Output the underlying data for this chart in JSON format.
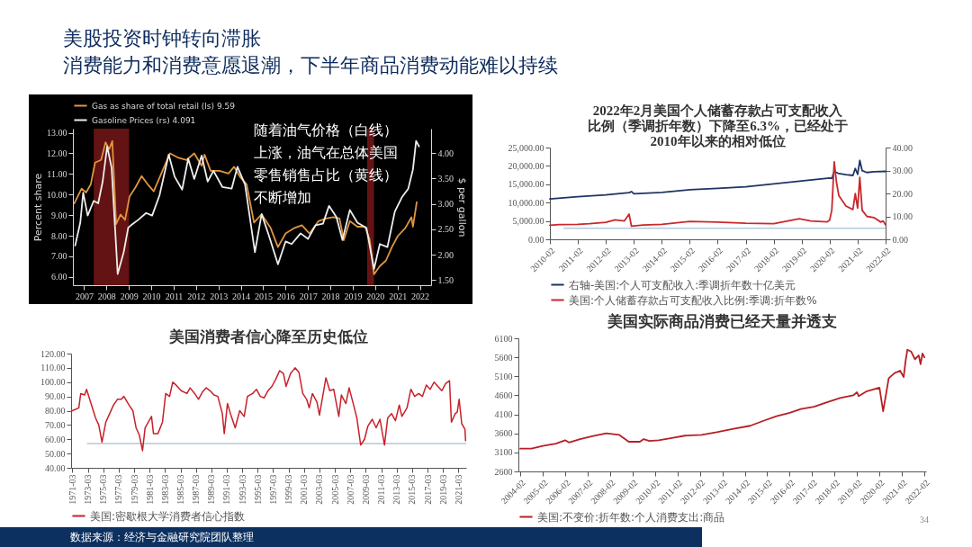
{
  "chart_data": [
    {
      "type": "line",
      "title": "美股投资时钟转向滞胀",
      "subtitle": "消费能力和消费意愿退潮，下半年商品消费动能难以持续",
      "ylabel": "Percent share",
      "y2label": "$ per gallon",
      "annotations": [
        "随着油气价格（白线）上涨，油气在总体美国零售销售占比（黄线）不断增加"
      ],
      "legend": "top",
      "xlim": [
        2007,
        2023
      ],
      "xticks": [
        {
          "value": 2007.5,
          "label": "2007"
        },
        {
          "value": 2008.5,
          "label": "2008"
        },
        {
          "value": 2009.5,
          "label": "2009"
        },
        {
          "value": 2010.5,
          "label": "2010"
        },
        {
          "value": 2011.5,
          "label": "2011"
        },
        {
          "value": 2012.5,
          "label": "2012"
        },
        {
          "value": 2013.5,
          "label": "2013"
        },
        {
          "value": 2014.5,
          "label": "2014"
        },
        {
          "value": 2015.5,
          "label": "2015"
        },
        {
          "value": 2016.5,
          "label": "2016"
        },
        {
          "value": 2017.5,
          "label": "2017"
        },
        {
          "value": 2018.5,
          "label": "2018"
        },
        {
          "value": 2019.5,
          "label": "2019"
        },
        {
          "value": 2020.5,
          "label": "2020"
        },
        {
          "value": 2021.5,
          "label": "2021"
        },
        {
          "value": 2022.5,
          "label": "2022"
        }
      ],
      "ylim": [
        5.6,
        13.2
      ],
      "yticks": [
        {
          "value": 6,
          "label": "6.00"
        },
        {
          "value": 7,
          "label": "7.00"
        },
        {
          "value": 8,
          "label": "8.00"
        },
        {
          "value": 9,
          "label": "9.00"
        },
        {
          "value": 10,
          "label": "10.00"
        },
        {
          "value": 11,
          "label": "11.00"
        },
        {
          "value": 12,
          "label": "12.00"
        },
        {
          "value": 13,
          "label": "13.00"
        }
      ],
      "y2lim": [
        1.4,
        4.48
      ],
      "y2ticks": [
        {
          "value": 1.5,
          "label": "1.50"
        },
        {
          "value": 2,
          "label": "2.00"
        },
        {
          "value": 2.5,
          "label": "2.50"
        },
        {
          "value": 3,
          "label": "3.00"
        },
        {
          "value": 3.5,
          "label": "3.50"
        },
        {
          "value": 4,
          "label": "4.00"
        }
      ],
      "bands": [
        {
          "axis": "x",
          "from": 2007.93,
          "to": 2009.51,
          "color": "#6e1515"
        },
        {
          "axis": "x",
          "from": 2020.14,
          "to": 2020.45,
          "color": "#6e1515"
        }
      ],
      "series": [
        {
          "name": "Gas as share of total retail (ls) 9.59",
          "color": "#e0953f",
          "x": [
            2007.06,
            2007.39,
            2007.59,
            2007.8,
            2007.99,
            2008.26,
            2008.46,
            2008.62,
            2008.76,
            2008.93,
            2009.13,
            2009.33,
            2009.53,
            2009.8,
            2010.07,
            2010.34,
            2010.61,
            2011.0,
            2011.34,
            2011.68,
            2012.08,
            2012.42,
            2012.75,
            2012.88,
            2013.15,
            2013.55,
            2013.95,
            2014.2,
            2014.49,
            2014.76,
            2015.09,
            2015.43,
            2015.83,
            2016.16,
            2016.5,
            2016.9,
            2017.23,
            2017.57,
            2017.97,
            2018.3,
            2018.64,
            2018.91,
            2019.1,
            2019.37,
            2019.71,
            2020.05,
            2020.25,
            2020.45,
            2020.71,
            2020.98,
            2021.25,
            2021.51,
            2021.85,
            2022.12,
            2022.19,
            2022.36
          ],
          "values": [
            9.57,
            10.29,
            10.1,
            10.5,
            11.55,
            11.68,
            12.54,
            12.2,
            12.6,
            8.57,
            9.03,
            8.77,
            9.9,
            10.36,
            10.9,
            10.5,
            10.16,
            11.15,
            12.0,
            11.8,
            11.68,
            12.0,
            11.4,
            11.94,
            11.15,
            11.15,
            11.02,
            11.35,
            10.82,
            10.5,
            8.64,
            9.04,
            8.38,
            7.45,
            8.11,
            8.38,
            8.51,
            8.11,
            8.71,
            8.84,
            8.9,
            8.84,
            7.78,
            8.71,
            8.44,
            8.44,
            7.85,
            6.13,
            6.53,
            6.79,
            7.45,
            7.98,
            8.38,
            8.9,
            8.44,
            9.63
          ]
        },
        {
          "name": "Gasoline Prices (rs) 4.091",
          "color": "#eeeeee",
          "axis": "y2",
          "x": [
            2007.1,
            2007.33,
            2007.46,
            2007.66,
            2007.93,
            2008.13,
            2008.33,
            2008.53,
            2008.73,
            2009.0,
            2009.27,
            2009.47,
            2009.6,
            2009.93,
            2010.27,
            2010.54,
            2010.87,
            2011.28,
            2011.54,
            2011.88,
            2012.15,
            2012.42,
            2012.75,
            2013.02,
            2013.28,
            2013.68,
            2014.09,
            2014.35,
            2014.69,
            2015.13,
            2015.43,
            2015.76,
            2016.16,
            2016.5,
            2016.77,
            2017.17,
            2017.5,
            2017.84,
            2018.17,
            2018.44,
            2018.77,
            2019.04,
            2019.37,
            2019.71,
            2020.11,
            2020.45,
            2020.71,
            2021.05,
            2021.38,
            2021.71,
            2021.98,
            2022.19,
            2022.33,
            2022.46
          ],
          "values": [
            2.18,
            2.63,
            3.22,
            2.77,
            3.06,
            3.01,
            3.44,
            4.13,
            3.71,
            1.62,
            2.05,
            2.53,
            2.58,
            2.69,
            2.82,
            2.77,
            3.17,
            3.97,
            3.54,
            3.28,
            3.89,
            3.49,
            3.95,
            3.44,
            3.65,
            3.33,
            3.3,
            3.73,
            3.38,
            2.05,
            2.8,
            2.37,
            1.81,
            2.26,
            2.21,
            2.42,
            2.31,
            2.58,
            2.61,
            2.96,
            2.74,
            2.29,
            2.88,
            2.63,
            2.53,
            1.72,
            2.21,
            2.15,
            2.85,
            3.14,
            3.3,
            3.68,
            4.24,
            4.13
          ]
        }
      ]
    },
    {
      "type": "line",
      "title": "2022年2月美国个人储蓄存款占可支配收入比例（季调折年数）下降至6.3%，已经处于2010年以来的相对低位",
      "legend": "bottom",
      "xlim": [
        "2010-02",
        "2022-02"
      ],
      "xticks": [
        "2010-02",
        "2011-02",
        "2012-02",
        "2013-02",
        "2014-02",
        "2015-02",
        "2016-02",
        "2017-02",
        "2018-02",
        "2019-02",
        "2020-02",
        "2021-02",
        "2022-02"
      ],
      "ylim": [
        0,
        25000
      ],
      "yticks": [
        {
          "value": 0,
          "label": "0.00"
        },
        {
          "value": 5000,
          "label": "5,000.00"
        },
        {
          "value": 10000,
          "label": "10,000.00"
        },
        {
          "value": 15000,
          "label": "15,000.00"
        },
        {
          "value": 20000,
          "label": "20,000.00"
        },
        {
          "value": 25000,
          "label": "25,000.00"
        }
      ],
      "y2lim": [
        0,
        40
      ],
      "y2ticks": [
        {
          "value": 0,
          "label": "0.00"
        },
        {
          "value": 10,
          "label": "10.00"
        },
        {
          "value": 20,
          "label": "20.00"
        },
        {
          "value": 30,
          "label": "30.00"
        },
        {
          "value": 40,
          "label": "40.00"
        }
      ],
      "ref_lines": [
        {
          "axis": "y",
          "value": 3000,
          "color": "#8fb0c8"
        }
      ],
      "series": [
        {
          "name": "右轴-美国:个人可支配收入:季调折年数十亿美元",
          "color": "#1f3466",
          "x": [
            "2010-02",
            "2011-02",
            "2012-02",
            "2012-12",
            "2013-01",
            "2013-02",
            "2014-02",
            "2015-02",
            "2016-02",
            "2017-02",
            "2018-02",
            "2019-02",
            "2020-02",
            "2020-03",
            "2020-04",
            "2020-06",
            "2020-09",
            "2020-12",
            "2021-01",
            "2021-02",
            "2021-03",
            "2021-04",
            "2021-06",
            "2021-09",
            "2022-02"
          ],
          "values": [
            11000,
            11600,
            12100,
            12700,
            13000,
            12400,
            12800,
            13500,
            13900,
            14300,
            15100,
            15900,
            16700,
            16600,
            18500,
            17900,
            17600,
            17400,
            19300,
            17700,
            21500,
            18700,
            18200,
            18400,
            18500
          ]
        },
        {
          "name": "美国:个人储蓄存款占可支配收入比例:季调:折年数%",
          "color": "#c8282d",
          "axis": "y2",
          "x": [
            "2010-02",
            "2010-06",
            "2011-02",
            "2011-07",
            "2012-02",
            "2012-06",
            "2012-10",
            "2012-12",
            "2013-01",
            "2013-06",
            "2014-02",
            "2015-02",
            "2016-02",
            "2017-02",
            "2018-02",
            "2019-01",
            "2019-06",
            "2020-01",
            "2020-02",
            "2020-03",
            "2020-04",
            "2020-05",
            "2020-06",
            "2020-09",
            "2020-12",
            "2021-01",
            "2021-02",
            "2021-03",
            "2021-04",
            "2021-06",
            "2021-09",
            "2021-12",
            "2022-01",
            "2022-02"
          ],
          "values": [
            6.1,
            6.4,
            6.5,
            6.8,
            7.4,
            8.5,
            8.0,
            11.0,
            5.7,
            6.2,
            6.5,
            7.8,
            7.5,
            7.0,
            6.8,
            9.0,
            8.0,
            7.6,
            8.3,
            12.8,
            33.8,
            24.8,
            19.0,
            14.5,
            13.0,
            19.9,
            13.6,
            27.0,
            12.7,
            10.0,
            9.5,
            7.5,
            8.0,
            6.3
          ]
        }
      ]
    },
    {
      "type": "line",
      "title": "美国消费者信心降至历史低位",
      "legend": "bottom",
      "xlim": [
        "1971-01",
        "2022-03"
      ],
      "xticks": [
        "1971-03",
        "1973-03",
        "1975-03",
        "1977-03",
        "1979-03",
        "1981-03",
        "1983-03",
        "1985-03",
        "1987-03",
        "1989-03",
        "1991-03",
        "1993-03",
        "1995-03",
        "1997-03",
        "1999-03",
        "2001-03",
        "2003-03",
        "2005-03",
        "2007-03",
        "2009-03",
        "2011-03",
        "2013-03",
        "2015-03",
        "2017-03",
        "2019-03",
        "2021-03"
      ],
      "ylim": [
        40,
        120
      ],
      "yticks": [
        {
          "value": 40,
          "label": "40.00"
        },
        {
          "value": 50,
          "label": "50.00"
        },
        {
          "value": 60,
          "label": "60.00"
        },
        {
          "value": 70,
          "label": "70.00"
        },
        {
          "value": 80,
          "label": "80.00"
        },
        {
          "value": 90,
          "label": "90.00"
        },
        {
          "value": 100,
          "label": "100.00"
        },
        {
          "value": 110,
          "label": "110.00"
        },
        {
          "value": 120,
          "label": "120.00"
        }
      ],
      "ref_lines": [
        {
          "axis": "y",
          "value": 57,
          "color": "#8fa9bf"
        }
      ],
      "series": [
        {
          "name": "美国:密歇根大学消费者信心指数",
          "color": "#c8202a",
          "x": [
            "1971-03",
            "1972-01",
            "1972-04",
            "1972-10",
            "1973-01",
            "1973-08",
            "1974-03",
            "1974-08",
            "1975-01",
            "1975-07",
            "1976-01",
            "1976-07",
            "1977-01",
            "1977-07",
            "1977-11",
            "1978-07",
            "1979-01",
            "1979-06",
            "1979-11",
            "1980-04",
            "1980-08",
            "1981-01",
            "1981-06",
            "1981-09",
            "1982-04",
            "1982-11",
            "1983-04",
            "1983-10",
            "1984-03",
            "1984-08",
            "1985-04",
            "1986-01",
            "1986-06",
            "1987-01",
            "1987-07",
            "1988-01",
            "1988-07",
            "1989-01",
            "1989-07",
            "1990-01",
            "1990-08",
            "1990-11",
            "1991-04",
            "1991-10",
            "1992-04",
            "1992-11",
            "1993-06",
            "1993-11",
            "1994-07",
            "1995-01",
            "1995-07",
            "1996-01",
            "1996-07",
            "1997-01",
            "1997-07",
            "1998-01",
            "1998-07",
            "1998-11",
            "1999-06",
            "2000-01",
            "2000-07",
            "2001-01",
            "2001-07",
            "2001-11",
            "2002-04",
            "2002-11",
            "2003-03",
            "2003-08",
            "2004-01",
            "2004-07",
            "2005-01",
            "2005-09",
            "2006-01",
            "2006-08",
            "2007-01",
            "2007-08",
            "2008-01",
            "2008-07",
            "2009-01",
            "2009-06",
            "2010-01",
            "2010-07",
            "2011-01",
            "2011-08",
            "2012-01",
            "2012-07",
            "2013-01",
            "2013-07",
            "2013-11",
            "2014-07",
            "2015-01",
            "2015-07",
            "2016-01",
            "2016-07",
            "2017-01",
            "2017-07",
            "2018-01",
            "2018-07",
            "2019-01",
            "2019-07",
            "2020-01",
            "2020-04",
            "2020-10",
            "2021-01",
            "2021-04",
            "2021-08",
            "2022-01",
            "2022-02"
          ],
          "values": [
            80,
            82,
            92,
            91,
            95,
            85,
            75,
            70,
            58,
            72,
            78,
            84,
            88,
            88,
            90,
            84,
            80,
            68,
            63,
            52,
            68,
            72,
            76,
            64,
            64,
            72,
            92,
            90,
            100,
            98,
            94,
            92,
            96,
            92,
            88,
            93,
            96,
            94,
            91,
            90,
            78,
            64,
            85,
            76,
            68,
            80,
            76,
            90,
            92,
            95,
            90,
            89,
            94,
            97,
            102,
            108,
            106,
            97,
            106,
            110,
            107,
            92,
            88,
            82,
            92,
            86,
            77,
            90,
            103,
            94,
            95,
            76,
            91,
            85,
            96,
            84,
            75,
            56,
            60,
            69,
            74,
            68,
            74,
            56,
            75,
            78,
            73,
            84,
            76,
            82,
            95,
            90,
            92,
            90,
            98,
            95,
            100,
            97,
            94,
            99,
            101,
            72,
            78,
            79,
            88,
            71,
            67,
            59
          ]
        }
      ]
    },
    {
      "type": "line",
      "title": "美国实际商品消费已经天量并透支",
      "legend": "bottom",
      "annotations": [
        "数据来源：经济与金融研究院团队整理",
        "34"
      ],
      "xlim": [
        "2004-01",
        "2022-03"
      ],
      "xticks": [
        "2004-02",
        "2005-02",
        "2006-02",
        "2007-02",
        "2008-02",
        "2009-02",
        "2010-02",
        "2011-02",
        "2012-02",
        "2013-02",
        "2014-02",
        "2015-02",
        "2016-02",
        "2017-02",
        "2018-02",
        "2019-02",
        "2020-02",
        "2021-02",
        "2022-02"
      ],
      "ylim": [
        2600,
        6100
      ],
      "yticks": [
        2600,
        3100,
        3600,
        4100,
        4600,
        5100,
        5600,
        6100
      ],
      "series": [
        {
          "name": "美国:不变价:折年数:个人消费支出:商品",
          "color": "#b52025",
          "x": [
            "2004-02",
            "2004-08",
            "2005-02",
            "2005-09",
            "2006-02",
            "2006-04",
            "2006-10",
            "2007-05",
            "2007-12",
            "2008-07",
            "2008-12",
            "2009-06",
            "2009-08",
            "2009-11",
            "2010-04",
            "2010-11",
            "2011-06",
            "2012-03",
            "2012-11",
            "2013-08",
            "2014-05",
            "2014-12",
            "2015-07",
            "2016-02",
            "2016-08",
            "2017-03",
            "2017-10",
            "2018-05",
            "2018-12",
            "2019-02",
            "2019-03",
            "2019-07",
            "2020-02",
            "2020-04",
            "2020-07",
            "2020-10",
            "2021-01",
            "2021-03",
            "2021-04",
            "2021-05",
            "2021-07",
            "2021-09",
            "2021-11",
            "2021-12",
            "2022-01",
            "2022-02"
          ],
          "values": [
            3200,
            3200,
            3270,
            3330,
            3420,
            3360,
            3450,
            3530,
            3600,
            3560,
            3380,
            3380,
            3450,
            3400,
            3420,
            3480,
            3540,
            3560,
            3630,
            3720,
            3800,
            3930,
            4050,
            4140,
            4240,
            4300,
            4420,
            4530,
            4600,
            4680,
            4580,
            4700,
            4800,
            4180,
            5050,
            5180,
            5250,
            5080,
            5500,
            5800,
            5750,
            5550,
            5650,
            5420,
            5700,
            5600
          ]
        }
      ]
    }
  ]
}
